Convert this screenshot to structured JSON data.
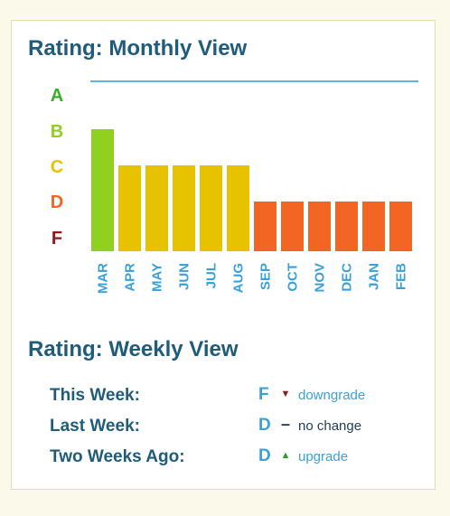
{
  "monthly": {
    "title": "Rating: Monthly View"
  },
  "weekly": {
    "title": "Rating: Weekly View",
    "rows": [
      {
        "label": "This Week:",
        "grade": "F",
        "change_icon": "down-triangle-icon",
        "change_text": "downgrade",
        "icon_color": "#8b1a1a",
        "text_color": "#3aa0d8"
      },
      {
        "label": "Last Week:",
        "grade": "D",
        "change_icon": "dash-icon",
        "change_text": "no change",
        "icon_color": "#1f3d55",
        "text_color": "#1f3d55"
      },
      {
        "label": "Two Weeks Ago:",
        "grade": "D",
        "change_icon": "up-triangle-icon",
        "change_text": "upgrade",
        "icon_color": "#2aa02a",
        "text_color": "#3aa0d8"
      }
    ]
  },
  "chart_data": {
    "type": "bar",
    "title": "Rating: Monthly View",
    "categories": [
      "MAR",
      "APR",
      "MAY",
      "JUN",
      "JUL",
      "AUG",
      "SEP",
      "OCT",
      "NOV",
      "DEC",
      "JAN",
      "FEB"
    ],
    "values": [
      "B",
      "C",
      "C",
      "C",
      "C",
      "C",
      "D",
      "D",
      "D",
      "D",
      "D",
      "D"
    ],
    "y_scale": [
      "A",
      "B",
      "C",
      "D",
      "F"
    ],
    "grade_colors": {
      "A": "#3dae2b",
      "B": "#8fd11e",
      "C": "#e8c300",
      "D": "#f26522",
      "F": "#8b1a1a"
    },
    "bar_colors": {
      "B": "#8fd11e",
      "C": "#e6c200",
      "D": "#f26522"
    },
    "grid": false
  }
}
